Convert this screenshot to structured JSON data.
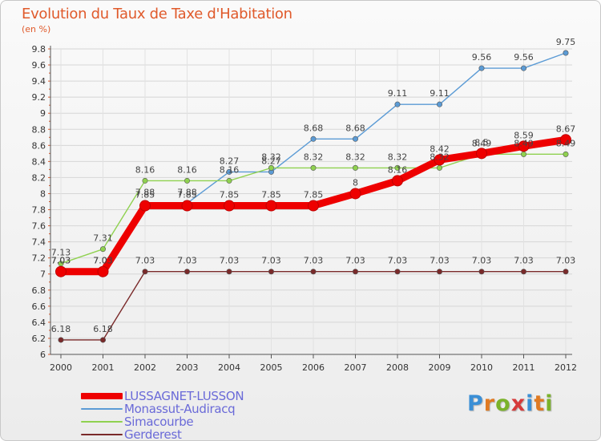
{
  "title": "Evolution du Taux de Taxe d'Habitation",
  "subtitle": "(en %)",
  "logo": {
    "text": "Proxiti",
    "letters": [
      "P",
      "r",
      "o",
      "x",
      "i",
      "t",
      "i"
    ],
    "colors": [
      "#3a8fd6",
      "#e07a22",
      "#7ab22a",
      "#d63a3a",
      "#3a8fd6",
      "#e07a22",
      "#7ab22a"
    ]
  },
  "chart_data": {
    "type": "line",
    "title": "Evolution du Taux de Taxe d'Habitation",
    "ylabel": "(en %)",
    "xlabel": "",
    "x": [
      "2000",
      "2001",
      "2002",
      "2003",
      "2004",
      "2005",
      "2006",
      "2007",
      "2008",
      "2009",
      "2010",
      "2011",
      "2012"
    ],
    "ylim": [
      6,
      9.8
    ],
    "ytick_step": 0.2,
    "y_tick_labels": [
      "6",
      "6.2",
      "6.4",
      "6.6",
      "6.8",
      "7",
      "7.2",
      "7.4",
      "7.6",
      "7.8",
      "8",
      "8.2",
      "8.4",
      "8.6",
      "8.8",
      "9",
      "9.2",
      "9.4",
      "9.6",
      "9.8"
    ],
    "legend_position": "bottom-left",
    "series": [
      {
        "name": "LUSSAGNET-LUSSON",
        "color": "#ee0000",
        "emphasis": "thick",
        "values": [
          7.03,
          7.03,
          7.85,
          7.85,
          7.85,
          7.85,
          7.85,
          8.0,
          8.16,
          8.42,
          8.5,
          8.59,
          8.67
        ],
        "labels": [
          "7.03",
          "7.03",
          "7.85",
          "7.85",
          "7.85",
          "7.85",
          "7.85",
          "8",
          "8.16",
          "8.42",
          "8.5",
          "8.59",
          "8.67"
        ]
      },
      {
        "name": "Monassut-Audiracq",
        "color": "#5b9bd5",
        "emphasis": "thin",
        "values": [
          7.03,
          7.03,
          7.88,
          7.88,
          8.27,
          8.27,
          8.68,
          8.68,
          9.11,
          9.11,
          9.56,
          9.56,
          9.75
        ],
        "labels": [
          "7.03",
          "7.03",
          "7.88",
          "7.88",
          "8.27",
          "8.27",
          "8.68",
          "8.68",
          "9.11",
          "9.11",
          "9.56",
          "9.56",
          "9.75"
        ]
      },
      {
        "name": "Simacourbe",
        "color": "#8fd14f",
        "emphasis": "thin",
        "values": [
          7.13,
          7.31,
          8.16,
          8.16,
          8.16,
          8.32,
          8.32,
          8.32,
          8.32,
          8.32,
          8.49,
          8.49,
          8.49
        ],
        "labels": [
          "7.13",
          "7.31",
          "8.16",
          "8.16",
          "8.16",
          "8.32",
          "8.32",
          "8.32",
          "8.32",
          "8.32",
          "8.49",
          "8.49",
          "8.49"
        ]
      },
      {
        "name": "Gerderest",
        "color": "#7a2a2a",
        "emphasis": "thin",
        "values": [
          6.18,
          6.18,
          7.03,
          7.03,
          7.03,
          7.03,
          7.03,
          7.03,
          7.03,
          7.03,
          7.03,
          7.03,
          7.03
        ],
        "labels": [
          "6.18",
          "6.18",
          "7.03",
          "7.03",
          "7.03",
          "7.03",
          "7.03",
          "7.03",
          "7.03",
          "7.03",
          "7.03",
          "7.03",
          "7.03"
        ]
      }
    ]
  }
}
